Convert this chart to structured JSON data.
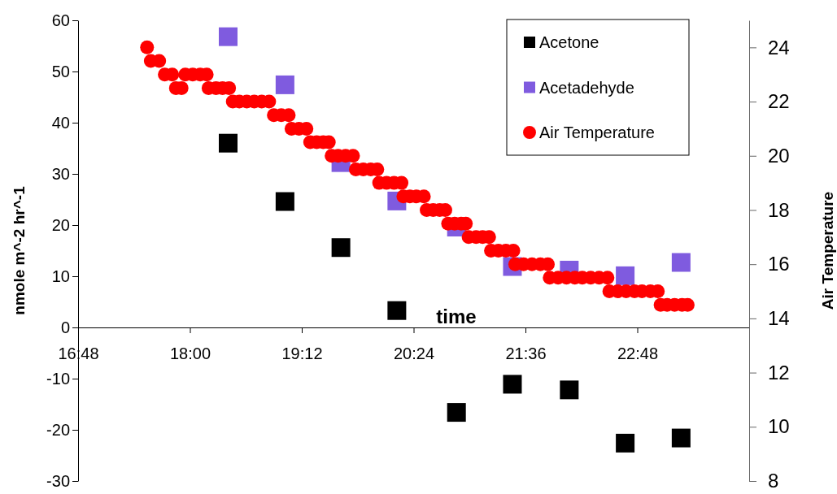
{
  "chart_data": {
    "type": "scatter",
    "xlabel": "time",
    "ylabel": "nmole m^-2 hr^-1",
    "y2label": "Air Temperature",
    "xlim": [
      16.8,
      24
    ],
    "xticks": [
      {
        "value": 16.8,
        "label": "16:48"
      },
      {
        "value": 18,
        "label": "18:00"
      },
      {
        "value": 19.2,
        "label": "19:12"
      },
      {
        "value": 20.4,
        "label": "20:24"
      },
      {
        "value": 21.6,
        "label": "21:36"
      },
      {
        "value": 22.8,
        "label": "22:48"
      }
    ],
    "ylim": [
      -30,
      60
    ],
    "yticks": [
      -30,
      -20,
      -10,
      0,
      10,
      20,
      30,
      40,
      50,
      60
    ],
    "y2lim": [
      8,
      25
    ],
    "y2ticks": [
      8,
      10,
      12,
      14,
      16,
      18,
      20,
      22,
      24
    ],
    "grid": false,
    "legend": "top right",
    "series": [
      {
        "name": "Acetone",
        "color": "#000000",
        "marker": "square",
        "x": [
          18.41,
          19.02,
          19.62,
          20.22,
          20.86,
          21.46,
          22.07,
          22.67,
          23.27
        ],
        "values": [
          36.0,
          24.6,
          15.6,
          3.3,
          -16.6,
          -11.1,
          -12.2,
          -22.6,
          -21.6
        ]
      },
      {
        "name": "Acetadehyde",
        "color": "#7f5bdf",
        "marker": "square",
        "x": [
          18.41,
          19.02,
          19.62,
          20.22,
          20.86,
          21.46,
          22.07,
          22.67,
          23.27
        ],
        "values": [
          56.8,
          47.4,
          32.2,
          24.7,
          19.6,
          11.9,
          11.2,
          10.1,
          12.7
        ]
      },
      {
        "name": "Air Temperature",
        "color": "#ff0000",
        "marker": "circle",
        "axis": "y2",
        "x": [
          17.54,
          17.58,
          17.67,
          17.73,
          17.81,
          17.85,
          17.91,
          17.95,
          18.03,
          18.11,
          18.18,
          18.2,
          18.28,
          18.35,
          18.42,
          18.46,
          18.53,
          18.61,
          18.69,
          18.77,
          18.85,
          18.9,
          18.98,
          19.06,
          19.09,
          19.17,
          19.25,
          19.29,
          19.36,
          19.43,
          19.49,
          19.52,
          19.59,
          19.67,
          19.75,
          19.78,
          19.86,
          19.94,
          20.01,
          20.03,
          20.11,
          20.19,
          20.27,
          20.29,
          20.36,
          20.43,
          20.51,
          20.54,
          20.61,
          20.68,
          20.74,
          20.77,
          20.84,
          20.91,
          20.96,
          20.99,
          21.07,
          21.14,
          21.21,
          21.23,
          21.31,
          21.39,
          21.47,
          21.49,
          21.58,
          21.67,
          21.76,
          21.84,
          21.86,
          21.95,
          22.04,
          22.13,
          22.21,
          22.3,
          22.39,
          22.48,
          22.5,
          22.59,
          22.68,
          22.77,
          22.85,
          22.94,
          23.02,
          23.05,
          23.12,
          23.2,
          23.28,
          23.34
        ],
        "values": [
          24,
          23.5,
          23.5,
          23,
          23,
          22.5,
          22.5,
          23,
          23,
          23,
          23,
          22.5,
          22.5,
          22.5,
          22.5,
          22,
          22,
          22,
          22,
          22,
          22,
          21.5,
          21.5,
          21.5,
          21,
          21,
          21,
          20.5,
          20.5,
          20.5,
          20.5,
          20,
          20,
          20,
          20,
          19.5,
          19.5,
          19.5,
          19.5,
          19,
          19,
          19,
          19,
          18.5,
          18.5,
          18.5,
          18.5,
          18,
          18,
          18,
          18,
          17.5,
          17.5,
          17.5,
          17.5,
          17,
          17,
          17,
          17,
          16.5,
          16.5,
          16.5,
          16.5,
          16,
          16,
          16,
          16,
          16,
          15.5,
          15.5,
          15.5,
          15.5,
          15.5,
          15.5,
          15.5,
          15.5,
          15,
          15,
          15,
          15,
          15,
          15,
          15,
          14.5,
          14.5,
          14.5,
          14.5,
          14.5
        ]
      }
    ]
  }
}
